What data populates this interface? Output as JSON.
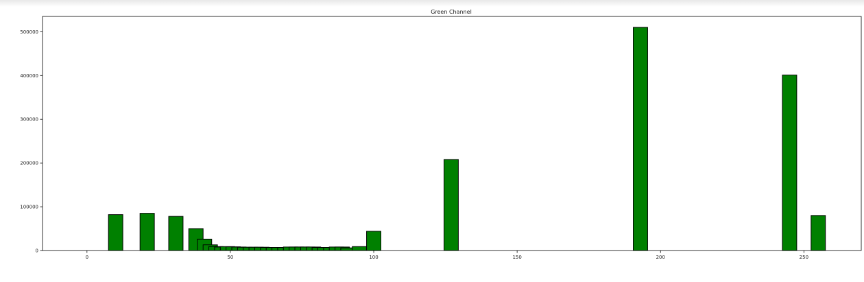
{
  "chart_data": {
    "type": "bar",
    "title": "Green Channel",
    "xlabel": "",
    "ylabel": "",
    "xlim": [
      -15.5,
      270
    ],
    "ylim": [
      0,
      535000
    ],
    "grid": false,
    "bar_width": 5,
    "bar_color": "#008000",
    "edge_color": "#000000",
    "x_ticks": [
      0,
      50,
      100,
      150,
      200,
      250
    ],
    "y_ticks": [
      0,
      100000,
      200000,
      300000,
      400000,
      500000
    ],
    "bars": [
      {
        "x": 10,
        "value": 82000
      },
      {
        "x": 21,
        "value": 85000
      },
      {
        "x": 31,
        "value": 78000
      },
      {
        "x": 38,
        "value": 50000
      },
      {
        "x": 41,
        "value": 26000
      },
      {
        "x": 43,
        "value": 13000
      },
      {
        "x": 45,
        "value": 9000
      },
      {
        "x": 47,
        "value": 8000
      },
      {
        "x": 49,
        "value": 9000
      },
      {
        "x": 51,
        "value": 8500
      },
      {
        "x": 53,
        "value": 8000
      },
      {
        "x": 55,
        "value": 7500
      },
      {
        "x": 57,
        "value": 7500
      },
      {
        "x": 59,
        "value": 7500
      },
      {
        "x": 61,
        "value": 7500
      },
      {
        "x": 63,
        "value": 7000
      },
      {
        "x": 65,
        "value": 7000
      },
      {
        "x": 67,
        "value": 7000
      },
      {
        "x": 69,
        "value": 7000
      },
      {
        "x": 71,
        "value": 8000
      },
      {
        "x": 73,
        "value": 8000
      },
      {
        "x": 75,
        "value": 8000
      },
      {
        "x": 77,
        "value": 8000
      },
      {
        "x": 79,
        "value": 8000
      },
      {
        "x": 81,
        "value": 7000
      },
      {
        "x": 83,
        "value": 7000
      },
      {
        "x": 85,
        "value": 7000
      },
      {
        "x": 87,
        "value": 8000
      },
      {
        "x": 89,
        "value": 8000
      },
      {
        "x": 91,
        "value": 6000
      },
      {
        "x": 95,
        "value": 9000
      },
      {
        "x": 100,
        "value": 44000
      },
      {
        "x": 127,
        "value": 208000
      },
      {
        "x": 193,
        "value": 510000
      },
      {
        "x": 245,
        "value": 401000
      },
      {
        "x": 255,
        "value": 80000
      }
    ]
  }
}
